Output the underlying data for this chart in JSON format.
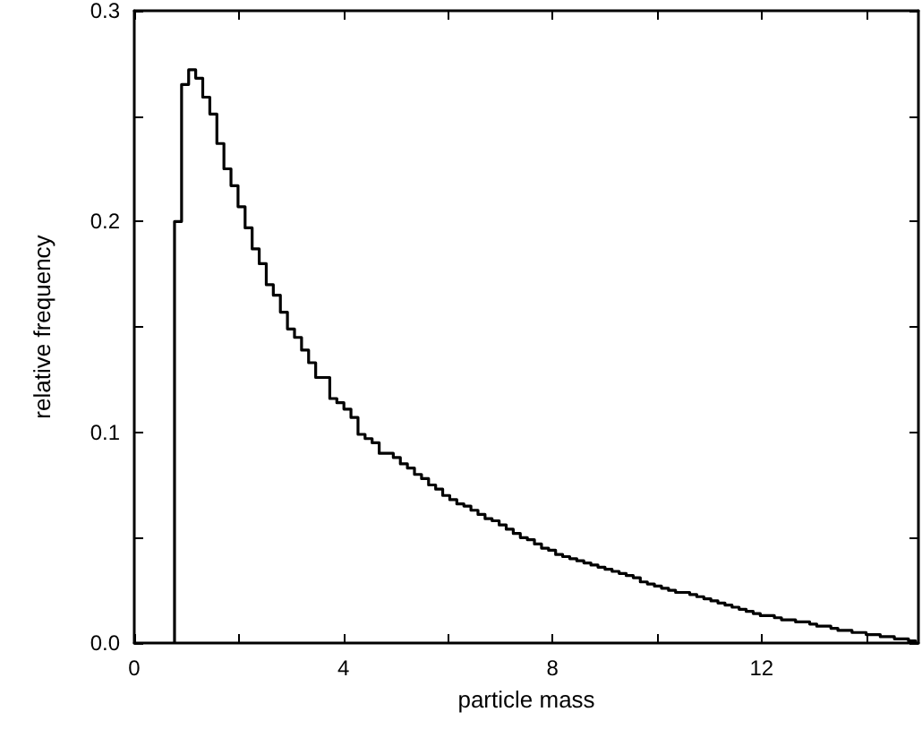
{
  "chart_data": {
    "type": "histogram",
    "xlabel": "particle mass",
    "ylabel": "relative frequency",
    "color": "#000000",
    "line_style": "solid",
    "xlim": [
      0,
      15
    ],
    "xticks": [
      0,
      {
        "value": 2,
        "label": null
      },
      4,
      {
        "value": 6,
        "label": null
      },
      8,
      {
        "value": 10,
        "label": null
      },
      12,
      {
        "value": 14,
        "label": null
      }
    ],
    "ylim": [
      0,
      0.3
    ],
    "yticks": [
      {
        "value": 0,
        "label": "0.0"
      },
      {
        "value": 0.05,
        "label": null
      },
      0.1,
      {
        "value": 0.15,
        "label": null
      },
      0.2,
      {
        "value": 0.25,
        "label": null
      },
      0.3
    ],
    "bins": [
      0.77,
      0.905,
      1.04,
      1.175,
      1.31,
      1.445,
      1.58,
      1.715,
      1.85,
      1.985,
      2.12,
      2.255,
      2.39,
      2.525,
      2.66,
      2.795,
      2.93,
      3.065,
      3.2,
      3.335,
      3.47,
      3.605,
      3.74,
      3.875,
      4.01,
      4.145,
      4.28,
      4.415,
      4.55,
      4.685,
      4.82,
      4.955,
      5.09,
      5.225,
      5.36,
      5.495,
      5.63,
      5.765,
      5.9,
      6.035,
      6.17,
      6.305,
      6.44,
      6.575,
      6.71,
      6.845,
      6.98,
      7.115,
      7.25,
      7.385,
      7.52,
      7.655,
      7.79,
      7.925,
      8.06,
      8.195,
      8.33,
      8.465,
      8.6,
      8.735,
      8.87,
      9.005,
      9.14,
      9.275,
      9.41,
      9.545,
      9.68,
      9.815,
      9.95,
      10.085,
      10.22,
      10.355,
      10.49,
      10.625,
      10.76,
      10.895,
      11.03,
      11.165,
      11.3,
      11.435,
      11.57,
      11.705,
      11.84,
      11.975,
      12.11,
      12.245,
      12.38,
      12.515,
      12.65,
      12.785,
      12.92,
      13.055,
      13.19,
      13.325,
      13.46,
      13.595,
      13.73,
      13.865,
      14.0,
      14.135,
      14.27,
      14.405,
      14.54,
      14.675,
      14.81,
      14.945
    ],
    "values": [
      0.2,
      0.265,
      0.272,
      0.268,
      0.259,
      0.251,
      0.237,
      0.225,
      0.217,
      0.207,
      0.197,
      0.187,
      0.18,
      0.17,
      0.165,
      0.157,
      0.149,
      0.145,
      0.139,
      0.133,
      0.126,
      0.126,
      0.116,
      0.114,
      0.111,
      0.107,
      0.099,
      0.097,
      0.095,
      0.09,
      0.09,
      0.088,
      0.085,
      0.083,
      0.08,
      0.078,
      0.075,
      0.073,
      0.07,
      0.068,
      0.066,
      0.065,
      0.063,
      0.061,
      0.059,
      0.058,
      0.056,
      0.054,
      0.052,
      0.05,
      0.049,
      0.047,
      0.045,
      0.044,
      0.042,
      0.041,
      0.04,
      0.039,
      0.038,
      0.037,
      0.036,
      0.035,
      0.034,
      0.033,
      0.032,
      0.031,
      0.029,
      0.028,
      0.027,
      0.026,
      0.025,
      0.024,
      0.024,
      0.023,
      0.022,
      0.021,
      0.02,
      0.019,
      0.018,
      0.017,
      0.016,
      0.015,
      0.014,
      0.013,
      0.013,
      0.012,
      0.011,
      0.011,
      0.01,
      0.01,
      0.009,
      0.008,
      0.008,
      0.007,
      0.006,
      0.006,
      0.005,
      0.005,
      0.004,
      0.004,
      0.003,
      0.003,
      0.002,
      0.002,
      0.001
    ]
  }
}
